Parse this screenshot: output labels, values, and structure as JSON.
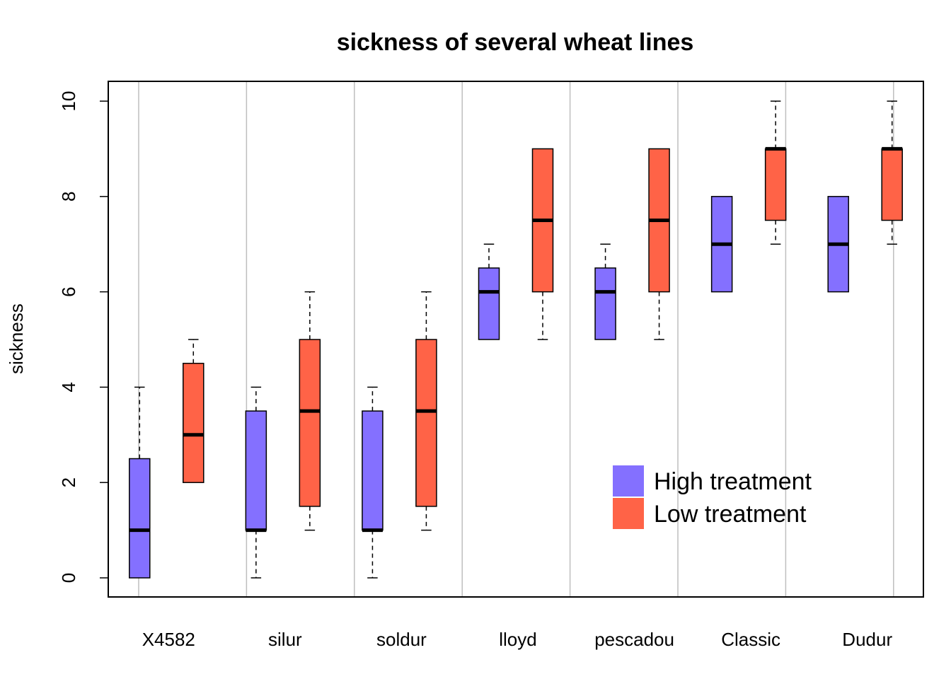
{
  "chart_data": {
    "type": "boxplot",
    "title": "sickness of several wheat lines",
    "xlabel": "",
    "ylabel": "sickness",
    "ylim": [
      -0.4,
      10.4
    ],
    "yticks": [
      "0",
      "2",
      "4",
      "6",
      "8",
      "10"
    ],
    "grid": "vertical",
    "legend_position": "bottom-right",
    "categories": [
      "X4582",
      "silur",
      "soldur",
      "lloyd",
      "pescadou",
      "Classic",
      "Dudur"
    ],
    "series": [
      {
        "name": "High treatment",
        "color": "#8470FF",
        "boxes": [
          {
            "min": 0,
            "q1": 0,
            "median": 1,
            "q3": 2.5,
            "max": 4
          },
          {
            "min": 0,
            "q1": 1,
            "median": 1,
            "q3": 3.5,
            "max": 4
          },
          {
            "min": 0,
            "q1": 1,
            "median": 1,
            "q3": 3.5,
            "max": 4
          },
          {
            "min": 5,
            "q1": 5,
            "median": 6,
            "q3": 6.5,
            "max": 7
          },
          {
            "min": 5,
            "q1": 5,
            "median": 6,
            "q3": 6.5,
            "max": 7
          },
          {
            "min": 6,
            "q1": 6,
            "median": 7,
            "q3": 8,
            "max": 8
          },
          {
            "min": 6,
            "q1": 6,
            "median": 7,
            "q3": 8,
            "max": 8
          }
        ]
      },
      {
        "name": "Low treatment",
        "color": "#FF6347",
        "boxes": [
          {
            "min": 2,
            "q1": 2,
            "median": 3,
            "q3": 4.5,
            "max": 5
          },
          {
            "min": 1,
            "q1": 1.5,
            "median": 3.5,
            "q3": 5,
            "max": 6
          },
          {
            "min": 1,
            "q1": 1.5,
            "median": 3.5,
            "q3": 5,
            "max": 6
          },
          {
            "min": 5,
            "q1": 6,
            "median": 7.5,
            "q3": 9,
            "max": 9
          },
          {
            "min": 5,
            "q1": 6,
            "median": 7.5,
            "q3": 9,
            "max": 9
          },
          {
            "min": 7,
            "q1": 7.5,
            "median": 9,
            "q3": 9,
            "max": 10
          },
          {
            "min": 7,
            "q1": 7.5,
            "median": 9,
            "q3": 9,
            "max": 10
          }
        ]
      }
    ]
  }
}
